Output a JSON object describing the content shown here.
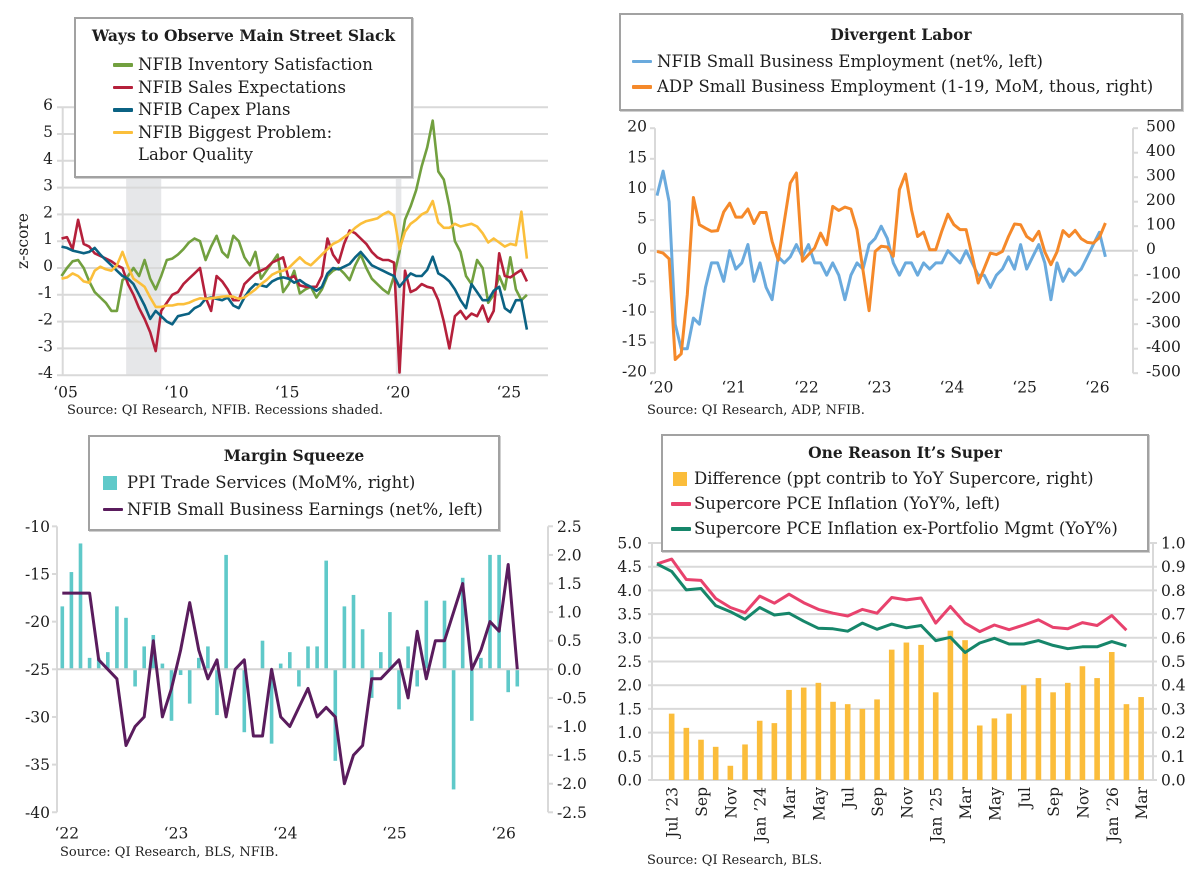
{
  "chart_data": [
    {
      "type": "line",
      "title": "Ways to Observe Main Street Slack",
      "xlabel": "",
      "ylabel": "z-score",
      "ylim": [
        -4,
        6
      ],
      "yticks": [
        "6",
        "5",
        "4",
        "3",
        "2",
        "1",
        "0",
        "-1",
        "-2",
        "-3",
        "-4"
      ],
      "grid": true,
      "legend_position": "top-left",
      "x_start": "2005-01",
      "x_step_months": 3,
      "xticks": [
        {
          "label": "‘05",
          "date": "2005-01"
        },
        {
          "label": "‘10",
          "date": "2010-01"
        },
        {
          "label": "‘15",
          "date": "2015-01"
        },
        {
          "label": "‘20",
          "date": "2020-01"
        },
        {
          "label": "‘25",
          "date": "2025-01"
        }
      ],
      "shaded_periods_label": "Recessions",
      "shaded_periods": [
        {
          "start": "2007-12",
          "end": "2009-06"
        },
        {
          "start": "2020-02",
          "end": "2020-04"
        }
      ],
      "series": [
        {
          "name": "NFIB Inventory Satisfaction",
          "color": "#72a03f",
          "values": [
            -0.3,
            0.0,
            0.25,
            0.3,
            0.0,
            -0.5,
            -0.9,
            -1.1,
            -1.3,
            -1.6,
            -1.6,
            -0.45,
            -0.3,
            0.0,
            -0.3,
            0.3,
            -0.4,
            -0.8,
            -0.3,
            0.3,
            0.35,
            0.5,
            0.7,
            0.95,
            1.1,
            1.0,
            0.3,
            0.8,
            1.2,
            0.6,
            0.4,
            1.2,
            1.0,
            0.4,
            0.1,
            0.6,
            -0.4,
            -0.1,
            0.2,
            0.5,
            -0.9,
            -0.6,
            -0.1,
            -0.95,
            -0.8,
            -0.7,
            -1.1,
            -0.8,
            -0.3,
            -0.1,
            0.0,
            -0.2,
            -0.45,
            0.1,
            0.5,
            0.0,
            -0.4,
            -0.6,
            -0.8,
            -0.95,
            -0.3,
            0.6,
            1.8,
            2.3,
            2.9,
            3.8,
            4.5,
            5.5,
            3.6,
            3.3,
            2.3,
            1.0,
            0.6,
            -0.3,
            -0.6,
            0.3,
            0.0,
            -1.3,
            -1.0,
            -0.3,
            -0.8,
            0.4,
            -0.8,
            -1.2,
            -1.0
          ]
        },
        {
          "name": "NFIB Sales Expectations",
          "color": "#b5203b",
          "values": [
            1.1,
            1.15,
            0.7,
            1.8,
            0.9,
            0.8,
            0.55,
            0.45,
            0.35,
            0.25,
            0.1,
            0.0,
            -0.6,
            -1.0,
            -1.5,
            -1.9,
            -2.4,
            -3.1,
            -1.6,
            -1.3,
            -1.0,
            -0.9,
            -0.6,
            -0.4,
            -0.2,
            0.0,
            -1.1,
            -1.6,
            -0.3,
            -0.5,
            -0.8,
            -1.2,
            -1.2,
            -0.6,
            -0.4,
            -0.2,
            -0.1,
            0.0,
            0.2,
            0.3,
            0.4,
            -0.4,
            -0.3,
            -0.65,
            -0.7,
            -0.7,
            -0.7,
            -0.3,
            1.1,
            0.5,
            0.2,
            0.9,
            1.4,
            1.3,
            1.1,
            0.9,
            0.6,
            0.4,
            0.3,
            0.3,
            0.2,
            -3.9,
            -0.1,
            -0.9,
            -0.8,
            -0.6,
            -0.7,
            -0.75,
            -1.2,
            -2.0,
            -3.0,
            -1.8,
            -1.6,
            -1.9,
            -1.7,
            -1.8,
            -1.4,
            -2.0,
            -1.6,
            0.55,
            -0.3,
            -0.35,
            -0.2,
            -0.07,
            -0.5
          ]
        },
        {
          "name": "NFIB Capex Plans",
          "color": "#0b6283",
          "values": [
            0.8,
            0.75,
            0.65,
            0.6,
            0.55,
            0.6,
            0.75,
            0.5,
            0.3,
            0.1,
            -0.1,
            -0.3,
            -0.4,
            -0.6,
            -1.0,
            -1.4,
            -1.9,
            -1.6,
            -1.8,
            -2.0,
            -2.1,
            -1.8,
            -1.75,
            -1.7,
            -1.5,
            -1.4,
            -1.15,
            -1.1,
            -1.15,
            -1.2,
            -1.1,
            -1.4,
            -1.5,
            -1.1,
            -0.8,
            -0.6,
            -0.65,
            -0.7,
            -0.5,
            -0.4,
            -0.35,
            -0.4,
            -0.55,
            -0.45,
            -0.6,
            -0.7,
            -0.85,
            -0.7,
            -0.2,
            0.0,
            -0.05,
            0.05,
            0.15,
            0.4,
            0.6,
            0.35,
            0.1,
            0.0,
            -0.1,
            -0.2,
            -0.3,
            -0.7,
            -0.45,
            -0.2,
            -0.3,
            -0.3,
            -0.07,
            0.42,
            -0.2,
            -0.32,
            -0.5,
            -0.8,
            -1.2,
            -1.5,
            -0.6,
            -0.9,
            -1.2,
            -1.2,
            -0.85,
            -0.7,
            -1.5,
            -1.65,
            -1.2,
            -1.2,
            -2.3
          ]
        },
        {
          "name": "NFIB Biggest Problem: Labor Quality",
          "color": "#fbbf3b",
          "values": [
            -0.4,
            -0.35,
            -0.2,
            -0.3,
            -0.5,
            -0.55,
            -0.1,
            0.05,
            -0.05,
            -0.1,
            0.1,
            0.6,
            0.05,
            -0.4,
            -0.55,
            -0.7,
            -1.1,
            -1.45,
            -1.45,
            -1.4,
            -1.4,
            -1.35,
            -1.35,
            -1.3,
            -1.2,
            -1.13,
            -1.15,
            -1.13,
            -1.1,
            -1.07,
            -1.05,
            -1.07,
            -1.15,
            -1.1,
            -0.95,
            -0.8,
            -0.6,
            -0.45,
            -0.25,
            -0.15,
            -0.1,
            0.0,
            0.2,
            0.4,
            0.2,
            0.1,
            0.3,
            0.5,
            0.7,
            0.9,
            1.0,
            1.15,
            1.3,
            1.5,
            1.65,
            1.75,
            1.8,
            1.85,
            2.0,
            2.1,
            1.95,
            0.7,
            1.35,
            1.65,
            1.8,
            2.0,
            2.1,
            2.5,
            1.7,
            1.5,
            1.5,
            1.65,
            1.55,
            1.6,
            1.65,
            1.55,
            1.3,
            0.95,
            1.1,
            0.95,
            0.8,
            0.9,
            0.85,
            2.1,
            0.35
          ]
        }
      ],
      "source": "Source: QI Research, NFIB. Recessions shaded."
    },
    {
      "type": "line",
      "title": "Divergent Labor",
      "xlabel": "",
      "ylabel": "",
      "ylim_left": [
        -20,
        20
      ],
      "ylim_right": [
        -500,
        500
      ],
      "yticks_left": [
        "20",
        "15",
        "10",
        "5",
        "0",
        "-5",
        "-10",
        "-15",
        "-20"
      ],
      "yticks_right": [
        "500",
        "400",
        "300",
        "200",
        "100",
        "0",
        "-100",
        "-200",
        "-300",
        "-400",
        "-500"
      ],
      "grid": false,
      "legend_position": "top",
      "x_start": "2020-01",
      "x_step_months": 1,
      "xticks": [
        {
          "label": "‘20",
          "date": "2020-01"
        },
        {
          "label": "‘21",
          "date": "2021-01"
        },
        {
          "label": "‘22",
          "date": "2022-01"
        },
        {
          "label": "‘23",
          "date": "2023-01"
        },
        {
          "label": "‘24",
          "date": "2024-01"
        },
        {
          "label": "‘25",
          "date": "2025-01"
        },
        {
          "label": "‘26",
          "date": "2026-01"
        }
      ],
      "series": [
        {
          "name": "NFIB Small Business Employment (net%, left)",
          "axis": "left",
          "color": "#6aaadd",
          "values": [
            9,
            13,
            8,
            -12,
            -16,
            -16,
            -11,
            -12,
            -6,
            -2,
            -2,
            -5,
            0,
            -3,
            -2,
            1,
            -5,
            -2,
            -6,
            -8,
            -1,
            -2,
            -1,
            1,
            -1,
            1,
            -2,
            -2,
            -4,
            -2,
            -4,
            -8,
            -4,
            -2,
            -3,
            1,
            2,
            4,
            2,
            -2,
            -4,
            -2,
            -2,
            -4,
            -2,
            -3,
            -2,
            -2,
            0,
            -1,
            -2,
            0,
            -2,
            -4,
            -4,
            -6,
            -4,
            -3,
            -1,
            -3,
            1,
            -3,
            -1,
            1,
            -2,
            -8,
            -2,
            -5,
            -3,
            -4,
            -3,
            -1,
            1,
            3,
            -1
          ]
        },
        {
          "name": "ADP Small Business Employment (1-19, MoM, thous, right)",
          "axis": "right",
          "color": "#f5892a",
          "values": [
            -3,
            -10,
            -33,
            -444,
            -421,
            -179,
            217,
            106,
            92,
            79,
            82,
            158,
            194,
            137,
            137,
            170,
            111,
            156,
            156,
            38,
            -39,
            120,
            276,
            317,
            -43,
            -16,
            11,
            72,
            24,
            181,
            164,
            178,
            170,
            86,
            -80,
            -245,
            -3,
            18,
            15,
            -23,
            249,
            313,
            167,
            58,
            76,
            4,
            4,
            80,
            149,
            106,
            86,
            86,
            -20,
            -132,
            -72,
            -10,
            -16,
            -3,
            58,
            109,
            106,
            58,
            41,
            79,
            -5,
            -57,
            -5,
            82,
            58,
            83,
            49,
            34,
            31,
            54,
            113
          ]
        }
      ],
      "source": "Source: QI Research, ADP, NFIB."
    },
    {
      "type": "bar",
      "title": "Margin Squeeze",
      "xlabel": "",
      "ylabel": "",
      "ylim_left": [
        -40,
        -10
      ],
      "ylim_right": [
        -2.5,
        2.5
      ],
      "yticks_left": [
        "-10",
        "-15",
        "-20",
        "-25",
        "-30",
        "-35",
        "-40"
      ],
      "yticks_right": [
        "2.5",
        "2.0",
        "1.5",
        "1.0",
        "0.5",
        "0.0",
        "-0.5",
        "-1.0",
        "-1.5",
        "-2.0",
        "-2.5"
      ],
      "grid": false,
      "legend_position": "top",
      "x_start": "2022-01",
      "x_step_months": 1,
      "xticks": [
        {
          "label": "‘22",
          "date": "2022-01"
        },
        {
          "label": "‘23",
          "date": "2023-01"
        },
        {
          "label": "‘24",
          "date": "2024-01"
        },
        {
          "label": "‘25",
          "date": "2025-01"
        },
        {
          "label": "‘26",
          "date": "2026-01"
        }
      ],
      "series": [
        {
          "name": "PPI Trade Services (MoM%, right)",
          "type": "bar",
          "axis": "right",
          "color": "#5fc9c9",
          "values": [
            1.1,
            1.7,
            2.2,
            0.2,
            0.2,
            0.3,
            1.1,
            0.9,
            -0.3,
            0.4,
            0.6,
            0.1,
            -0.9,
            -0.1,
            -0.6,
            0.2,
            0.4,
            -0.8,
            2.0,
            0.0,
            -1.1,
            0.0,
            0.5,
            -1.3,
            0.1,
            0.3,
            -0.3,
            0.4,
            0.4,
            1.9,
            -1.6,
            1.1,
            1.3,
            0.7,
            -0.5,
            0.3,
            1.0,
            -0.7,
            0.4,
            -0.3,
            1.2,
            0.0,
            1.2,
            -2.1,
            1.6,
            -0.9,
            0.2,
            2.0,
            2.0,
            -0.4,
            -0.3
          ]
        },
        {
          "name": "NFIB Small Business Earnings (net%, left)",
          "type": "line",
          "axis": "left",
          "color": "#5a1c5d",
          "values": [
            -17,
            -17,
            -17,
            -17,
            -24,
            -25,
            -26,
            -33,
            -31,
            -30,
            -22,
            -30,
            -27,
            -23,
            -18,
            -23,
            -26,
            -24,
            -30,
            -25,
            -24,
            -32,
            -32,
            -25,
            -30,
            -31,
            -29,
            -27,
            -30,
            -29,
            -30,
            -37,
            -34,
            -33,
            -26,
            -26,
            -25,
            -24,
            -28,
            -21,
            -26,
            -22,
            -22,
            -19,
            -16,
            -25,
            -23,
            -20,
            -21,
            -14,
            -25
          ]
        }
      ],
      "source": "Source: QI Research, BLS, NFIB."
    },
    {
      "type": "bar",
      "title": "One Reason It’s Super",
      "xlabel": "",
      "ylabel": "",
      "ylim_left": [
        0,
        5
      ],
      "ylim_right": [
        0,
        1
      ],
      "yticks_left": [
        "5.0",
        "4.5",
        "4.0",
        "3.5",
        "3.0",
        "2.5",
        "2.0",
        "1.5",
        "1.0",
        "0.5",
        "0.0"
      ],
      "yticks_right": [
        "1.0",
        "0.9",
        "0.8",
        "0.7",
        "0.6",
        "0.5",
        "0.4",
        "0.3",
        "0.2",
        "0.1",
        "0.0"
      ],
      "grid": true,
      "legend_position": "top",
      "x_start": "2023-06",
      "x_step_months": 1,
      "xticks": [
        {
          "label": "Jul ’23",
          "date": "2023-07"
        },
        {
          "label": "Sep",
          "date": "2023-09"
        },
        {
          "label": "Nov",
          "date": "2023-11"
        },
        {
          "label": "Jan ’24",
          "date": "2024-01"
        },
        {
          "label": "Mar",
          "date": "2024-03"
        },
        {
          "label": "May",
          "date": "2024-05"
        },
        {
          "label": "Jul",
          "date": "2024-07"
        },
        {
          "label": "Sep",
          "date": "2024-09"
        },
        {
          "label": "Nov",
          "date": "2024-11"
        },
        {
          "label": "Jan ’25",
          "date": "2025-01"
        },
        {
          "label": "Mar",
          "date": "2025-03"
        },
        {
          "label": "May",
          "date": "2025-05"
        },
        {
          "label": "Jul",
          "date": "2025-07"
        },
        {
          "label": "Sep",
          "date": "2025-09"
        },
        {
          "label": "Nov",
          "date": "2025-11"
        },
        {
          "label": "Jan ’26",
          "date": "2026-01"
        },
        {
          "label": "Mar",
          "date": "2026-03"
        }
      ],
      "series": [
        {
          "name": "Difference (ppt contrib to YoY Supercore, right)",
          "type": "bar",
          "axis": "right",
          "color": "#fbbd3b",
          "values": [
            null,
            0.28,
            0.22,
            0.17,
            0.14,
            0.06,
            0.15,
            0.25,
            0.24,
            0.38,
            0.39,
            0.41,
            0.33,
            0.32,
            0.3,
            0.34,
            0.55,
            0.58,
            0.57,
            0.37,
            0.63,
            0.59,
            0.23,
            0.26,
            0.28,
            0.4,
            0.43,
            0.37,
            0.41,
            0.48,
            0.43,
            0.54,
            0.32,
            0.35
          ]
        },
        {
          "name": "Supercore PCE Inflation (YoY%, left)",
          "type": "line",
          "axis": "left",
          "color": "#e8426d",
          "values": [
            4.56,
            4.66,
            4.23,
            4.21,
            3.83,
            3.64,
            3.53,
            3.88,
            3.73,
            3.92,
            3.74,
            3.6,
            3.52,
            3.46,
            3.6,
            3.52,
            3.85,
            3.8,
            3.84,
            3.31,
            3.66,
            3.31,
            3.13,
            3.27,
            3.17,
            3.27,
            3.38,
            3.22,
            3.19,
            3.32,
            3.26,
            3.47,
            3.16,
            null
          ]
        },
        {
          "name": "Supercore PCE Inflation ex-Portfolio Mgmt (YoY%)",
          "type": "line",
          "axis": "left",
          "color": "#16866a",
          "values": [
            4.56,
            4.4,
            4.01,
            4.04,
            3.68,
            3.55,
            3.39,
            3.64,
            3.48,
            3.52,
            3.35,
            3.2,
            3.19,
            3.14,
            3.31,
            3.18,
            3.29,
            3.21,
            3.26,
            2.94,
            3.01,
            2.69,
            2.89,
            2.99,
            2.87,
            2.87,
            2.94,
            2.84,
            2.77,
            2.81,
            2.81,
            2.92,
            2.83,
            null
          ]
        }
      ],
      "source": "Source: QI Research, BLS."
    }
  ]
}
